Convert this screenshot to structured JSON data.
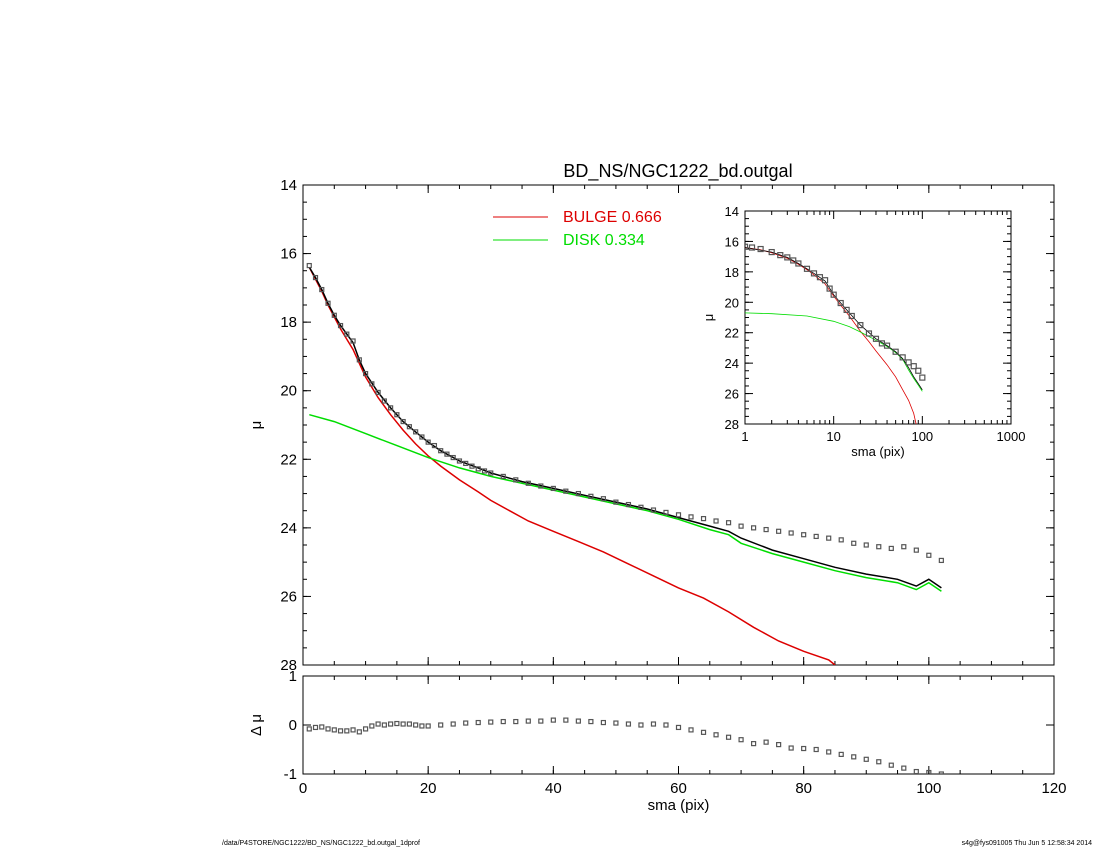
{
  "footer": {
    "path": "/data/P4STORE/NGC1222/BD_NS/NGC1222_bd.outgal_1dprof",
    "stamp": "s4g@fys091005  Thu Jun  5 12:58:34 2014"
  },
  "colors": {
    "bulge": "#dd0000",
    "disk": "#00dd00",
    "model": "#000000",
    "data": "#555555"
  },
  "chart_data": [
    {
      "id": "main",
      "type": "line",
      "title": "BD_NS/NGC1222_bd.outgal",
      "xlabel": "",
      "ylabel": "μ",
      "xlim": [
        0,
        120
      ],
      "ylim": [
        28,
        14
      ],
      "xticks": [],
      "yticks": [
        "14",
        "16",
        "18",
        "20",
        "22",
        "24",
        "26",
        "28"
      ],
      "legend": [
        {
          "name": "BULGE  0.666",
          "color": "#dd0000"
        },
        {
          "name": "DISK  0.334",
          "color": "#00dd00"
        }
      ],
      "legend_position": "top-center",
      "series": [
        {
          "name": "BULGE  0.666",
          "color": "#dd0000",
          "x": [
            1,
            2,
            3,
            4,
            5,
            6,
            7,
            8,
            9,
            10,
            12,
            14,
            16,
            18,
            20,
            22,
            25,
            28,
            30,
            33,
            36,
            40,
            44,
            48,
            52,
            56,
            60,
            64,
            68,
            72,
            76,
            80,
            84,
            85
          ],
          "y": [
            16.4,
            16.75,
            17.1,
            17.5,
            17.85,
            18.2,
            18.5,
            18.8,
            19.2,
            19.6,
            20.2,
            20.7,
            21.15,
            21.55,
            21.9,
            22.2,
            22.6,
            22.95,
            23.2,
            23.5,
            23.8,
            24.1,
            24.4,
            24.7,
            25.05,
            25.4,
            25.75,
            26.05,
            26.45,
            26.9,
            27.3,
            27.6,
            27.85,
            28.0
          ]
        },
        {
          "name": "DISK  0.334",
          "color": "#00dd00",
          "x": [
            1,
            5,
            10,
            15,
            20,
            25,
            30,
            35,
            40,
            45,
            50,
            55,
            60,
            65,
            68,
            70,
            75,
            80,
            85,
            90,
            95,
            98,
            100,
            102
          ],
          "y": [
            20.7,
            20.9,
            21.25,
            21.6,
            21.95,
            22.25,
            22.5,
            22.7,
            22.9,
            23.1,
            23.3,
            23.5,
            23.75,
            24.05,
            24.2,
            24.45,
            24.75,
            25.0,
            25.25,
            25.45,
            25.6,
            25.8,
            25.6,
            25.85
          ]
        },
        {
          "name": "",
          "color": "#000000",
          "x": [
            1,
            2,
            3,
            4,
            5,
            6,
            7,
            8,
            9,
            10,
            12,
            14,
            16,
            18,
            20,
            22,
            25,
            28,
            30,
            35,
            40,
            45,
            50,
            55,
            60,
            65,
            68,
            70,
            75,
            80,
            85,
            90,
            95,
            98,
            100,
            102
          ],
          "y": [
            16.4,
            16.7,
            17.05,
            17.45,
            17.8,
            18.1,
            18.35,
            18.6,
            19.1,
            19.5,
            20.05,
            20.5,
            20.9,
            21.2,
            21.5,
            21.75,
            22.05,
            22.25,
            22.4,
            22.65,
            22.85,
            23.05,
            23.25,
            23.45,
            23.7,
            23.95,
            24.1,
            24.3,
            24.65,
            24.9,
            25.15,
            25.35,
            25.5,
            25.7,
            25.5,
            25.75
          ]
        },
        {
          "name": "",
          "color": "#555555",
          "marker": "square",
          "x": [
            1,
            2,
            3,
            4,
            5,
            6,
            7,
            8,
            9,
            10,
            11,
            12,
            13,
            14,
            15,
            16,
            17,
            18,
            19,
            20,
            21,
            22,
            23,
            24,
            25,
            26,
            27,
            28,
            29,
            30,
            32,
            34,
            36,
            38,
            40,
            42,
            44,
            46,
            48,
            50,
            52,
            54,
            56,
            58,
            60,
            62,
            64,
            66,
            68,
            70,
            72,
            74,
            76,
            78,
            80,
            82,
            84,
            86,
            88,
            90,
            92,
            94,
            96,
            98,
            100,
            102
          ],
          "y": [
            16.35,
            16.7,
            17.05,
            17.45,
            17.8,
            18.1,
            18.35,
            18.55,
            19.1,
            19.5,
            19.8,
            20.05,
            20.3,
            20.5,
            20.7,
            20.9,
            21.05,
            21.2,
            21.35,
            21.5,
            21.6,
            21.75,
            21.85,
            21.95,
            22.05,
            22.12,
            22.2,
            22.28,
            22.34,
            22.4,
            22.5,
            22.6,
            22.7,
            22.78,
            22.85,
            22.93,
            23.0,
            23.08,
            23.15,
            23.25,
            23.32,
            23.4,
            23.48,
            23.55,
            23.62,
            23.68,
            23.73,
            23.8,
            23.85,
            23.95,
            24.0,
            24.05,
            24.1,
            24.15,
            24.2,
            24.25,
            24.3,
            24.35,
            24.45,
            24.5,
            24.55,
            24.6,
            24.55,
            24.65,
            24.8,
            24.95
          ]
        }
      ]
    },
    {
      "id": "inset",
      "type": "line",
      "title": "",
      "xlabel": "sma (pix)",
      "ylabel": "μ",
      "xscale": "log",
      "xlim": [
        1,
        1000
      ],
      "ylim": [
        28,
        14
      ],
      "xticks": [
        "1",
        "10",
        "100",
        "1000"
      ],
      "yticks": [
        "14",
        "16",
        "18",
        "20",
        "22",
        "24",
        "26",
        "28"
      ],
      "series": [
        {
          "name": "",
          "color": "#dd0000",
          "x": [
            1,
            1.5,
            2,
            3,
            4,
            5,
            6,
            8,
            10,
            12,
            15,
            20,
            25,
            30,
            40,
            50,
            60,
            70,
            80,
            85
          ],
          "y": [
            16.4,
            16.55,
            16.75,
            17.1,
            17.5,
            17.85,
            18.2,
            18.8,
            19.6,
            20.2,
            20.9,
            21.9,
            22.6,
            23.2,
            24.1,
            24.9,
            25.75,
            26.45,
            27.3,
            28.0
          ]
        },
        {
          "name": "",
          "color": "#00dd00",
          "x": [
            1,
            2,
            5,
            10,
            15,
            20,
            30,
            40,
            50,
            60,
            70,
            80,
            90,
            100
          ],
          "y": [
            20.7,
            20.75,
            20.9,
            21.25,
            21.6,
            21.95,
            22.5,
            22.9,
            23.3,
            23.75,
            24.45,
            25.0,
            25.45,
            25.85
          ]
        },
        {
          "name": "",
          "color": "#000000",
          "x": [
            1,
            2,
            3,
            4,
            5,
            6,
            8,
            10,
            12,
            15,
            20,
            30,
            40,
            50,
            60,
            70,
            80,
            90,
            100
          ],
          "y": [
            16.4,
            16.7,
            17.05,
            17.45,
            17.8,
            18.1,
            18.6,
            19.5,
            20.05,
            20.7,
            21.5,
            22.4,
            22.85,
            23.25,
            23.7,
            24.3,
            24.9,
            25.35,
            25.75
          ]
        },
        {
          "name": "",
          "color": "#555555",
          "marker": "square",
          "x": [
            1,
            1.2,
            1.5,
            2,
            2.5,
            3,
            3.5,
            4,
            5,
            6,
            7,
            8,
            9,
            10,
            12,
            14,
            16,
            20,
            25,
            30,
            35,
            40,
            50,
            60,
            70,
            80,
            90,
            100
          ],
          "y": [
            16.35,
            16.4,
            16.5,
            16.7,
            16.9,
            17.05,
            17.25,
            17.45,
            17.8,
            18.1,
            18.35,
            18.55,
            19.1,
            19.5,
            20.05,
            20.5,
            20.9,
            21.5,
            22.05,
            22.4,
            22.7,
            22.85,
            23.25,
            23.62,
            23.95,
            24.2,
            24.5,
            24.95
          ]
        }
      ]
    },
    {
      "id": "residual",
      "type": "scatter",
      "title": "",
      "xlabel": "sma (pix)",
      "ylabel": "Δ μ",
      "xlim": [
        0,
        120
      ],
      "ylim": [
        -1,
        1
      ],
      "xticks": [
        "0",
        "20",
        "40",
        "60",
        "80",
        "100",
        "120"
      ],
      "yticks": [
        "1",
        "0",
        "-1"
      ],
      "series": [
        {
          "name": "",
          "color": "#555555",
          "marker": "square",
          "x": [
            1,
            2,
            3,
            4,
            5,
            6,
            7,
            8,
            9,
            10,
            11,
            12,
            13,
            14,
            15,
            16,
            17,
            18,
            19,
            20,
            22,
            24,
            26,
            28,
            30,
            32,
            34,
            36,
            38,
            40,
            42,
            44,
            46,
            48,
            50,
            52,
            54,
            56,
            58,
            60,
            62,
            64,
            66,
            68,
            70,
            72,
            74,
            76,
            78,
            80,
            82,
            84,
            86,
            88,
            90,
            92,
            94,
            96,
            98,
            100,
            102
          ],
          "y": [
            -0.08,
            -0.05,
            -0.04,
            -0.08,
            -0.1,
            -0.12,
            -0.12,
            -0.1,
            -0.14,
            -0.08,
            -0.02,
            0.02,
            0.0,
            0.02,
            0.03,
            0.02,
            0.02,
            0.0,
            -0.02,
            -0.02,
            0.0,
            0.02,
            0.04,
            0.05,
            0.06,
            0.07,
            0.07,
            0.08,
            0.08,
            0.1,
            0.1,
            0.08,
            0.07,
            0.05,
            0.04,
            0.02,
            0.0,
            0.02,
            0.0,
            -0.05,
            -0.1,
            -0.15,
            -0.2,
            -0.25,
            -0.3,
            -0.38,
            -0.35,
            -0.4,
            -0.47,
            -0.48,
            -0.5,
            -0.55,
            -0.6,
            -0.65,
            -0.7,
            -0.75,
            -0.82,
            -0.88,
            -0.95,
            -0.97,
            -1.0
          ]
        }
      ]
    }
  ]
}
